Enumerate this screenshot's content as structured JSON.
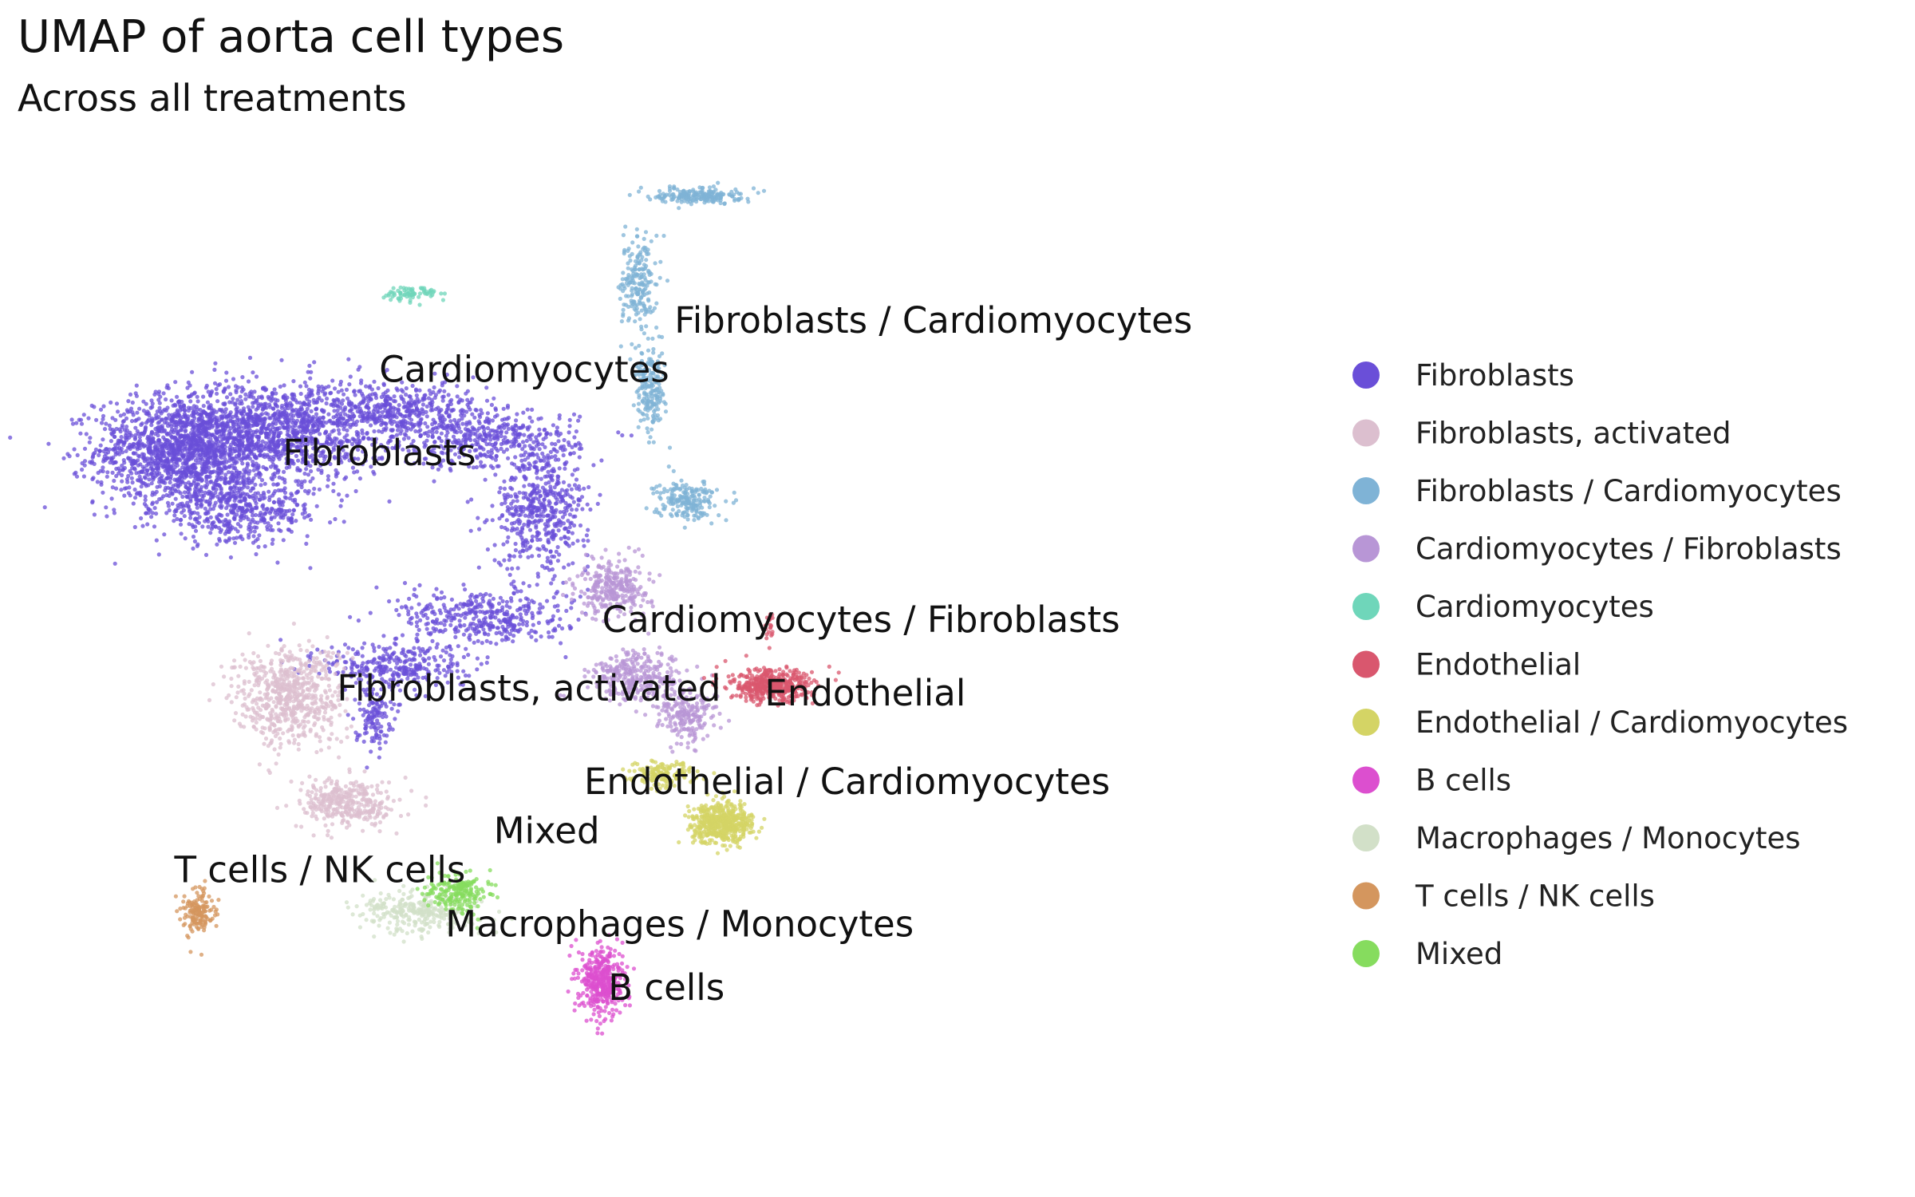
{
  "chart_data": {
    "type": "scatter",
    "title": "UMAP of aorta cell types",
    "subtitle": "Across all treatments",
    "xlabel": "",
    "ylabel": "",
    "axes_visible": false,
    "grid": false,
    "legend_position": "right",
    "xlim": [
      0,
      100
    ],
    "ylim": [
      0,
      100
    ],
    "series": [
      {
        "name": "Fibroblasts",
        "color": "#6a4fd8",
        "clusters": [
          {
            "cx": 11,
            "cy": 72,
            "rx": 7,
            "ry": 5.5,
            "n": 1400
          },
          {
            "cx": 19,
            "cy": 74,
            "rx": 9,
            "ry": 5,
            "n": 1200
          },
          {
            "cx": 16,
            "cy": 66,
            "rx": 7,
            "ry": 3.5,
            "n": 500
          },
          {
            "cx": 29,
            "cy": 76,
            "rx": 7,
            "ry": 3,
            "n": 450
          },
          {
            "cx": 37,
            "cy": 73,
            "rx": 7,
            "ry": 3,
            "n": 400
          },
          {
            "cx": 41,
            "cy": 66,
            "rx": 4,
            "ry": 6,
            "n": 500
          },
          {
            "cx": 36,
            "cy": 55,
            "rx": 7,
            "ry": 3,
            "n": 400
          },
          {
            "cx": 29,
            "cy": 50,
            "rx": 6,
            "ry": 2.5,
            "n": 300
          },
          {
            "cx": 27,
            "cy": 45,
            "rx": 1.5,
            "ry": 3,
            "n": 120
          }
        ]
      },
      {
        "name": "Fibroblasts, activated",
        "color": "#dcbfcf",
        "clusters": [
          {
            "cx": 20,
            "cy": 47,
            "rx": 4.5,
            "ry": 5,
            "n": 650
          },
          {
            "cx": 25,
            "cy": 36,
            "rx": 4,
            "ry": 2.5,
            "n": 350
          }
        ]
      },
      {
        "name": "Fibroblasts / Cardiomyocytes",
        "color": "#7fb3d6",
        "clusters": [
          {
            "cx": 53,
            "cy": 67,
            "rx": 2.5,
            "ry": 2,
            "n": 200
          },
          {
            "cx": 50,
            "cy": 78,
            "rx": 1.2,
            "ry": 4,
            "n": 200
          },
          {
            "cx": 49,
            "cy": 89,
            "rx": 1.5,
            "ry": 5,
            "n": 200
          },
          {
            "cx": 54,
            "cy": 98,
            "rx": 3.5,
            "ry": 0.8,
            "n": 200
          }
        ]
      },
      {
        "name": "Cardiomyocytes / Fibroblasts",
        "color": "#b896d6",
        "clusters": [
          {
            "cx": 47,
            "cy": 58,
            "rx": 3,
            "ry": 3,
            "n": 300
          },
          {
            "cx": 49,
            "cy": 49,
            "rx": 4,
            "ry": 2.5,
            "n": 300
          },
          {
            "cx": 53,
            "cy": 45,
            "rx": 2.5,
            "ry": 3,
            "n": 200
          }
        ]
      },
      {
        "name": "Cardiomyocytes",
        "color": "#6fd6ba",
        "clusters": [
          {
            "cx": 30,
            "cy": 88,
            "rx": 2.2,
            "ry": 0.8,
            "n": 70
          }
        ]
      },
      {
        "name": "Endothelial",
        "color": "#d9576e",
        "clusters": [
          {
            "cx": 60,
            "cy": 48,
            "rx": 3.5,
            "ry": 1.6,
            "n": 450
          },
          {
            "cx": 60,
            "cy": 54,
            "rx": 0.4,
            "ry": 1.5,
            "n": 20
          }
        ]
      },
      {
        "name": "Endothelial / Cardiomyocytes",
        "color": "#d4d465",
        "clusters": [
          {
            "cx": 56,
            "cy": 34,
            "rx": 2.5,
            "ry": 2,
            "n": 550
          },
          {
            "cx": 51,
            "cy": 39,
            "rx": 3,
            "ry": 1.2,
            "n": 150
          }
        ]
      },
      {
        "name": "B cells",
        "color": "#dc4fcf",
        "clusters": [
          {
            "cx": 46,
            "cy": 18,
            "rx": 1.8,
            "ry": 3.5,
            "n": 400
          }
        ]
      },
      {
        "name": "Macrophages / Monocytes",
        "color": "#d2e0c8",
        "clusters": [
          {
            "cx": 31,
            "cy": 25,
            "rx": 5,
            "ry": 2.2,
            "n": 300
          }
        ]
      },
      {
        "name": "T cells / NK cells",
        "color": "#d4965e",
        "clusters": [
          {
            "cx": 12.5,
            "cy": 25,
            "rx": 1.2,
            "ry": 2.2,
            "n": 150
          }
        ]
      },
      {
        "name": "Mixed",
        "color": "#86dc5e",
        "clusters": [
          {
            "cx": 34,
            "cy": 27,
            "rx": 2.5,
            "ry": 2,
            "n": 200
          }
        ]
      }
    ],
    "annotations": [
      {
        "text": "Fibroblasts / Cardiomyocytes",
        "x": 52,
        "y": 84
      },
      {
        "text": "Cardiomyocytes",
        "x": 27.5,
        "y": 79
      },
      {
        "text": "Fibroblasts",
        "x": 19.5,
        "y": 70.5
      },
      {
        "text": "Cardiomyocytes / Fibroblasts",
        "x": 46,
        "y": 53.5
      },
      {
        "text": "Fibroblasts, activated",
        "x": 24,
        "y": 46.5
      },
      {
        "text": "Endothelial",
        "x": 59.5,
        "y": 46
      },
      {
        "text": "Endothelial / Cardiomyocytes",
        "x": 44.5,
        "y": 37
      },
      {
        "text": "Mixed",
        "x": 37,
        "y": 32
      },
      {
        "text": "T cells / NK cells",
        "x": 10.5,
        "y": 28
      },
      {
        "text": "Macrophages / Monocytes",
        "x": 33,
        "y": 22.5
      },
      {
        "text": "B cells",
        "x": 46.5,
        "y": 16
      }
    ]
  }
}
